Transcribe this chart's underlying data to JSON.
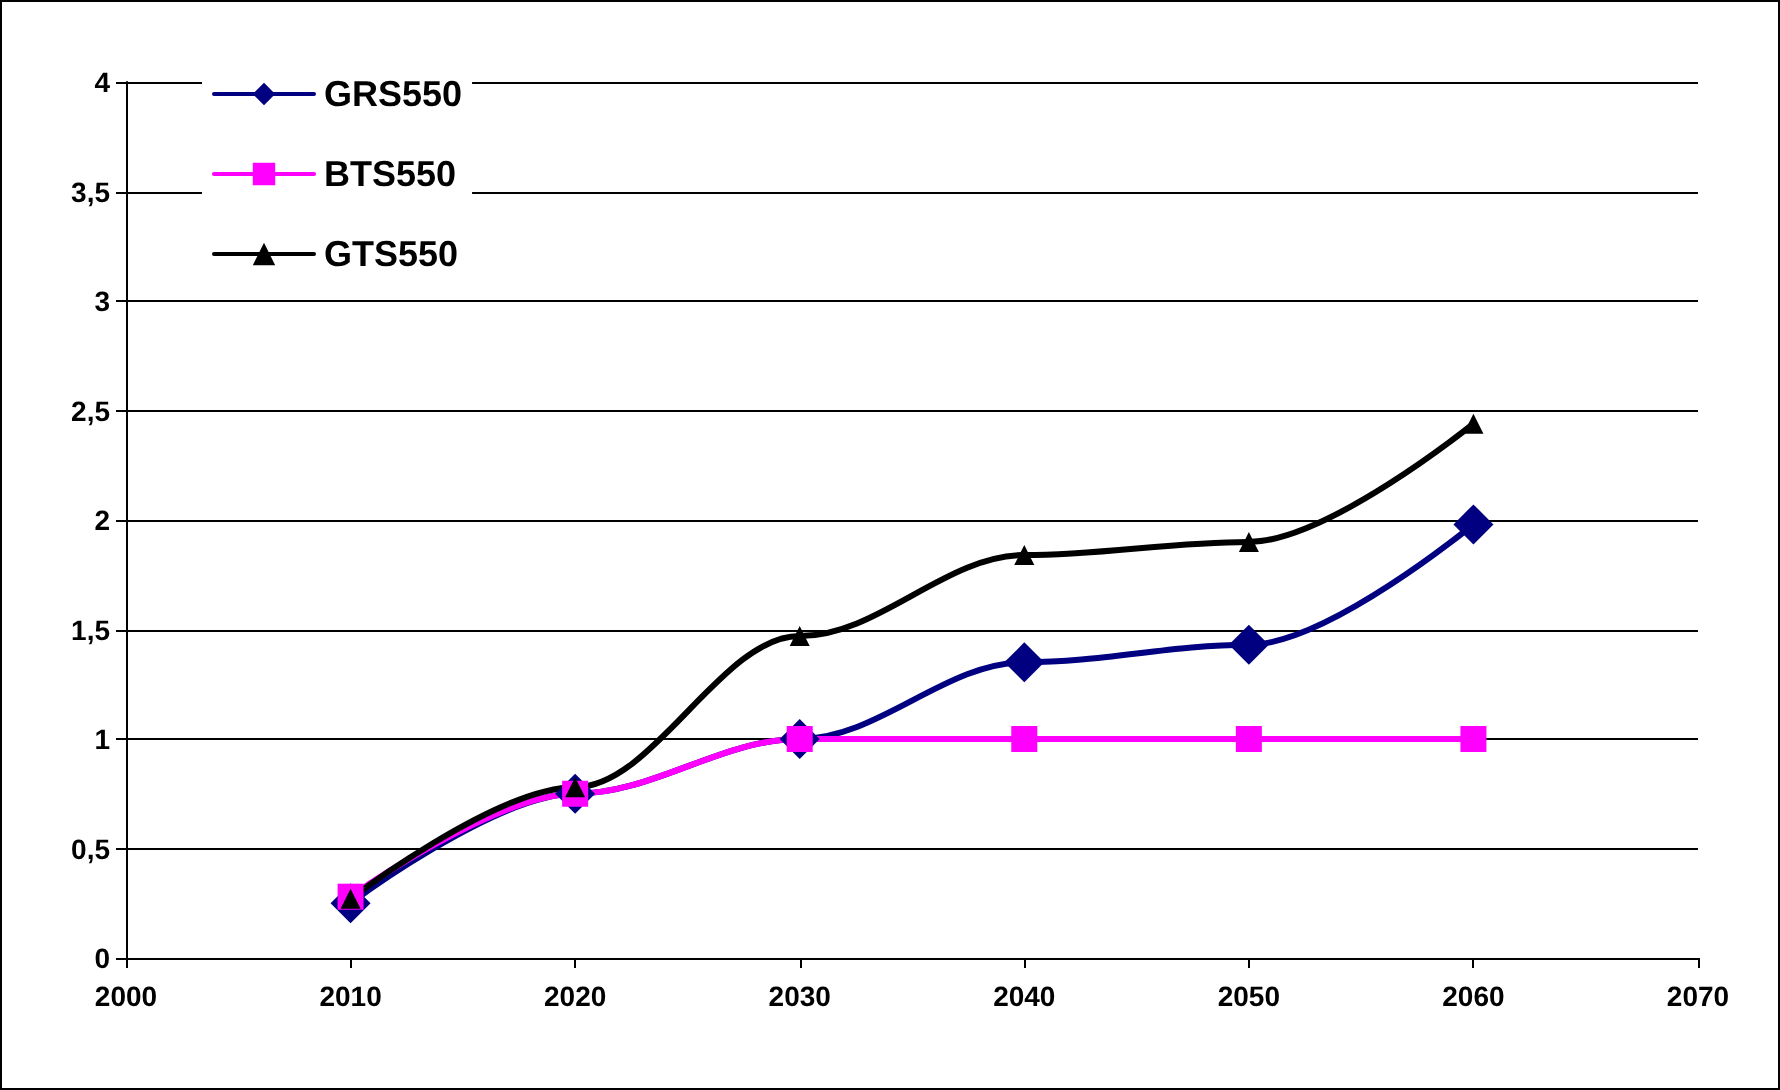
{
  "chart_data": {
    "type": "line",
    "x": [
      2010,
      2020,
      2030,
      2040,
      2050,
      2060
    ],
    "xlim": [
      2000,
      2070
    ],
    "xticks": [
      2000,
      2010,
      2020,
      2030,
      2040,
      2050,
      2060,
      2070
    ],
    "ylim": [
      0,
      4
    ],
    "yticks": [
      0,
      {
        "value": 0.5,
        "label": "0,5"
      },
      1,
      {
        "value": 1.5,
        "label": "1,5"
      },
      2,
      {
        "value": 2.5,
        "label": "2,5"
      },
      3,
      {
        "value": 3.5,
        "label": "3,5"
      },
      4
    ],
    "grid": "y",
    "legend": "top left",
    "line_style": "solid",
    "series": [
      {
        "name": "GRS550",
        "color": "#000080",
        "marker": "diamond",
        "values": [
          0.25,
          0.75,
          1.0,
          1.35,
          1.43,
          1.98
        ]
      },
      {
        "name": "BTS550",
        "color": "#ff00ff",
        "marker": "square",
        "values": [
          0.28,
          0.75,
          1.0,
          1.0,
          1.0,
          1.0
        ]
      },
      {
        "name": "GTS550",
        "color": "#000000",
        "marker": "triangle",
        "values": [
          0.27,
          0.78,
          1.47,
          1.84,
          1.9,
          2.44
        ]
      }
    ]
  }
}
